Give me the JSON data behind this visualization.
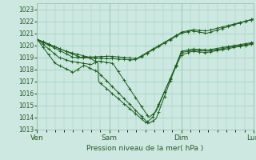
{
  "title": "",
  "xlabel": "Pression niveau de la mer( hPa )",
  "ylabel": "",
  "bg_color": "#cce8e0",
  "plot_bg_color": "#cce8e0",
  "grid_color": "#99ccbb",
  "line_color": "#1a5c1a",
  "marker_color": "#1a5c1a",
  "ylim": [
    1013,
    1023.5
  ],
  "yticks": [
    1013,
    1014,
    1015,
    1016,
    1017,
    1018,
    1019,
    1020,
    1021,
    1022,
    1023
  ],
  "xtick_labels": [
    "Ven",
    "Sam",
    "Dim",
    "Lun"
  ],
  "xtick_positions": [
    0,
    1,
    2,
    3
  ],
  "xlim": [
    0,
    3
  ],
  "series": [
    {
      "x": [
        0.0,
        0.25,
        0.5,
        0.75,
        1.0,
        1.25,
        1.5,
        1.75,
        2.0,
        2.25,
        2.5,
        2.75,
        3.0
      ],
      "y": [
        1020.5,
        1019.2,
        1018.5,
        1017.5,
        1019.0,
        1015.0,
        1013.5,
        1016.5,
        1019.5,
        1021.2,
        1020.9,
        1021.5,
        1022.2
      ]
    },
    {
      "x": [
        0.0,
        0.25,
        0.5,
        0.75,
        1.0,
        1.25,
        1.5,
        1.75,
        2.0,
        2.25,
        2.5,
        2.75,
        3.0
      ],
      "y": [
        1020.5,
        1019.0,
        1018.3,
        1017.3,
        1015.5,
        1013.8,
        1013.8,
        1016.0,
        1019.5,
        1021.1,
        1021.0,
        1021.8,
        1022.2
      ]
    },
    {
      "x": [
        0.0,
        0.25,
        0.5,
        0.75,
        1.0,
        1.25,
        1.5,
        1.75,
        2.0,
        2.25,
        2.5,
        2.75,
        3.0
      ],
      "y": [
        1020.5,
        1018.8,
        1018.1,
        1017.2,
        1015.2,
        1013.6,
        1013.5,
        1016.2,
        1019.5,
        1021.3,
        1021.0,
        1022.0,
        1022.2
      ]
    },
    {
      "x": [
        0.0,
        0.5,
        1.0,
        1.5,
        2.0,
        2.5,
        3.0
      ],
      "y": [
        1020.5,
        1019.3,
        1019.1,
        1019.1,
        1021.0,
        1021.8,
        1022.2
      ]
    },
    {
      "x": [
        0.0,
        0.5,
        1.0,
        1.5,
        2.0,
        2.5,
        3.0
      ],
      "y": [
        1020.5,
        1019.0,
        1019.1,
        1018.6,
        1021.5,
        1022.2,
        1022.2
      ]
    }
  ],
  "marker_every": 1,
  "linewidth": 0.8
}
